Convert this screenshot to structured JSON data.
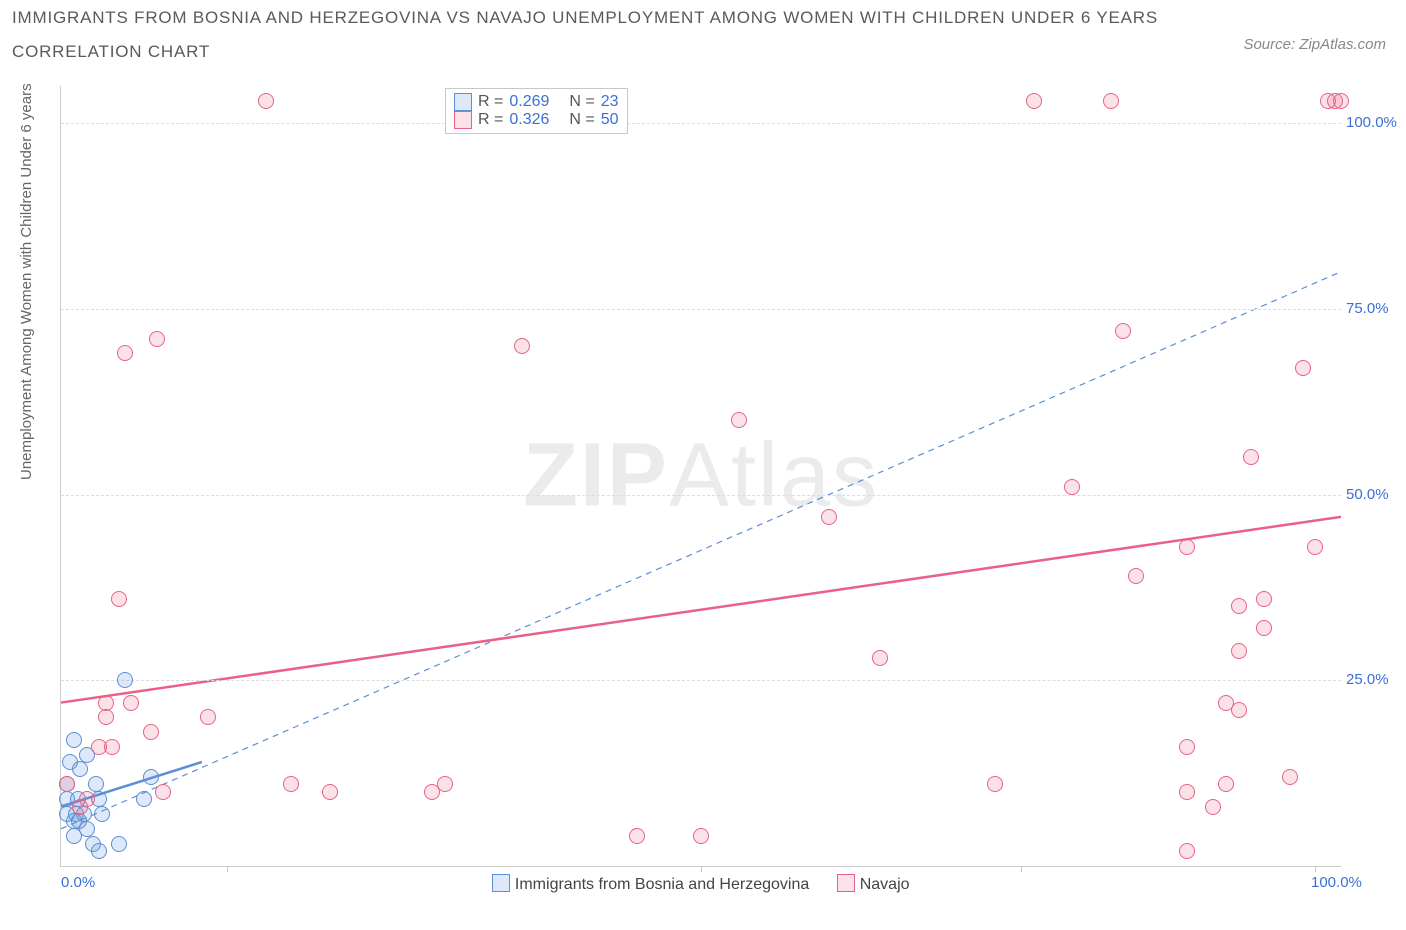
{
  "title_line1": "IMMIGRANTS FROM BOSNIA AND HERZEGOVINA VS NAVAJO UNEMPLOYMENT AMONG WOMEN WITH CHILDREN UNDER 6 YEARS",
  "title_line2": "CORRELATION CHART",
  "source_label": "Source: ZipAtlas.com",
  "ylabel": "Unemployment Among Women with Children Under 6 years",
  "watermark_bold": "ZIP",
  "watermark_light": "Atlas",
  "chart": {
    "type": "scatter",
    "xlim": [
      0,
      100
    ],
    "ylim": [
      0,
      105
    ],
    "grid_y": [
      25,
      50,
      75,
      100
    ],
    "ytick_labels": [
      "25.0%",
      "50.0%",
      "75.0%",
      "100.0%"
    ],
    "xtick_pos": [
      0,
      100
    ],
    "xtick_labels": [
      "0.0%",
      "100.0%"
    ],
    "xtick_marks": [
      13,
      50,
      75,
      98
    ],
    "background_color": "#ffffff",
    "grid_color": "#dddddd",
    "axis_color": "#cccccc",
    "label_color": "#3a6fd8",
    "marker_radius": 8,
    "marker_stroke": 1.3,
    "series": [
      {
        "key": "bosnia",
        "label": "Immigrants from Bosnia and Herzegovina",
        "color_fill": "rgba(99,148,222,0.22)",
        "color_stroke": "#5b8fd6",
        "R": "0.269",
        "N": "23",
        "trend": {
          "x1": 0,
          "y1": 8,
          "x2": 11,
          "y2": 14,
          "width": 2.5,
          "dash": "none"
        },
        "ref_line": {
          "x1": 0,
          "y1": 5,
          "x2": 100,
          "y2": 80,
          "width": 1.2,
          "dash": "6,5"
        },
        "points": [
          [
            0.5,
            7
          ],
          [
            0.5,
            9
          ],
          [
            0.5,
            11
          ],
          [
            0.7,
            14
          ],
          [
            1.0,
            6
          ],
          [
            1.0,
            4
          ],
          [
            1.0,
            17
          ],
          [
            1.2,
            7
          ],
          [
            1.3,
            9
          ],
          [
            1.4,
            6
          ],
          [
            1.5,
            13
          ],
          [
            1.8,
            7
          ],
          [
            2.0,
            15
          ],
          [
            2.0,
            5
          ],
          [
            2.5,
            3
          ],
          [
            2.7,
            11
          ],
          [
            3.0,
            2
          ],
          [
            3.0,
            9
          ],
          [
            3.2,
            7
          ],
          [
            4.5,
            3
          ],
          [
            5.0,
            25
          ],
          [
            6.5,
            9
          ],
          [
            7.0,
            12
          ]
        ]
      },
      {
        "key": "navajo",
        "label": "Navajo",
        "color_fill": "rgba(233,97,134,0.18)",
        "color_stroke": "#e96186",
        "R": "0.326",
        "N": "50",
        "trend": {
          "x1": 0,
          "y1": 22,
          "x2": 100,
          "y2": 47,
          "width": 2.5,
          "dash": "none"
        },
        "points": [
          [
            0.5,
            11
          ],
          [
            1.5,
            8
          ],
          [
            2.0,
            9
          ],
          [
            3.0,
            16
          ],
          [
            3.5,
            20
          ],
          [
            3.5,
            22
          ],
          [
            4.5,
            36
          ],
          [
            4.0,
            16
          ],
          [
            5.0,
            69
          ],
          [
            5.5,
            22
          ],
          [
            7.0,
            18
          ],
          [
            7.5,
            71
          ],
          [
            8.0,
            10
          ],
          [
            11.5,
            20
          ],
          [
            16,
            103
          ],
          [
            18,
            11
          ],
          [
            21,
            10
          ],
          [
            29,
            10
          ],
          [
            30,
            11
          ],
          [
            36,
            70
          ],
          [
            45,
            4
          ],
          [
            50,
            4
          ],
          [
            53,
            60
          ],
          [
            60,
            47
          ],
          [
            64,
            28
          ],
          [
            73,
            11
          ],
          [
            76,
            103
          ],
          [
            79,
            51
          ],
          [
            82,
            103
          ],
          [
            83,
            72
          ],
          [
            84,
            39
          ],
          [
            88,
            43
          ],
          [
            88,
            2
          ],
          [
            88,
            16
          ],
          [
            88,
            10
          ],
          [
            90,
            8
          ],
          [
            91,
            11
          ],
          [
            91,
            22
          ],
          [
            92,
            21
          ],
          [
            92,
            29
          ],
          [
            92,
            35
          ],
          [
            93,
            55
          ],
          [
            94,
            32
          ],
          [
            94,
            36
          ],
          [
            96,
            12
          ],
          [
            97,
            67
          ],
          [
            98,
            43
          ],
          [
            99,
            103
          ],
          [
            99.5,
            103
          ],
          [
            100,
            103
          ]
        ]
      }
    ]
  },
  "stats_legend": {
    "R_label": "R =",
    "N_label": "N ="
  },
  "series_legend_label_a": "Immigrants from Bosnia and Herzegovina",
  "series_legend_label_b": "Navajo"
}
